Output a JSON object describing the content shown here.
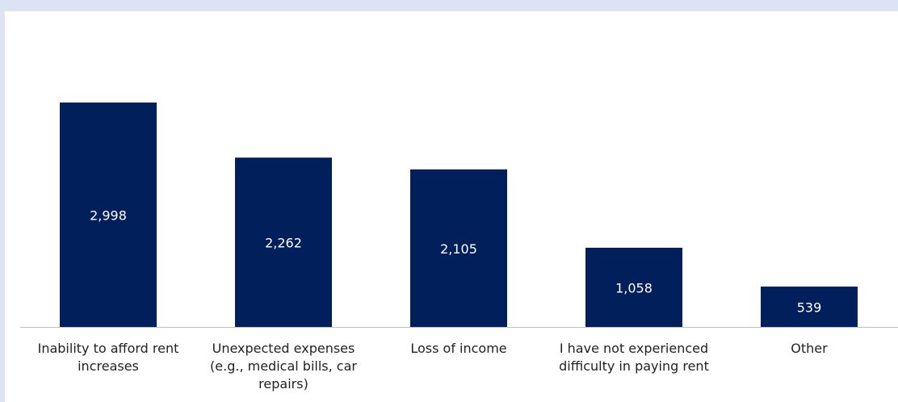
{
  "chart_data": {
    "type": "bar",
    "categories": [
      "Inability to afford rent increases",
      "Unexpected expenses (e.g., medical bills, car repairs)",
      "Loss of income",
      "I have not experienced difficulty in paying rent",
      "Other"
    ],
    "values": [
      2998,
      2262,
      2105,
      1058,
      539
    ],
    "value_labels": [
      "2,998",
      "2,262",
      "2,105",
      "1,058",
      "539"
    ],
    "color": "#001f5b"
  }
}
